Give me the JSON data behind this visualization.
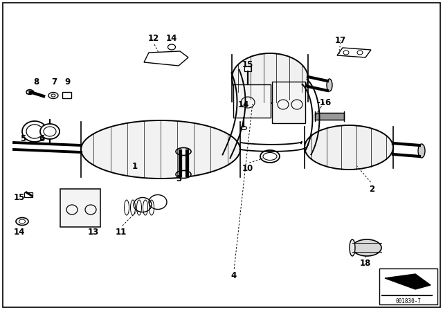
{
  "bg_color": "#ffffff",
  "line_color": "#000000",
  "diagram_number": "001830-7",
  "part_labels": [
    [
      "1",
      195,
      208
    ],
    [
      "2",
      537,
      175
    ],
    [
      "3",
      258,
      190
    ],
    [
      "4",
      338,
      50
    ],
    [
      "5",
      33,
      248
    ],
    [
      "6",
      60,
      248
    ],
    [
      "7",
      78,
      330
    ],
    [
      "8",
      52,
      330
    ],
    [
      "9",
      97,
      330
    ],
    [
      "10",
      358,
      205
    ],
    [
      "11",
      175,
      113
    ],
    [
      "12",
      222,
      393
    ],
    [
      "13",
      135,
      113
    ],
    [
      "14",
      28,
      113
    ],
    [
      "14",
      248,
      393
    ],
    [
      "14",
      352,
      297
    ],
    [
      "15",
      28,
      163
    ],
    [
      "15",
      358,
      355
    ],
    [
      "-16",
      468,
      300
    ],
    [
      "17",
      492,
      390
    ],
    [
      "18",
      528,
      68
    ]
  ]
}
